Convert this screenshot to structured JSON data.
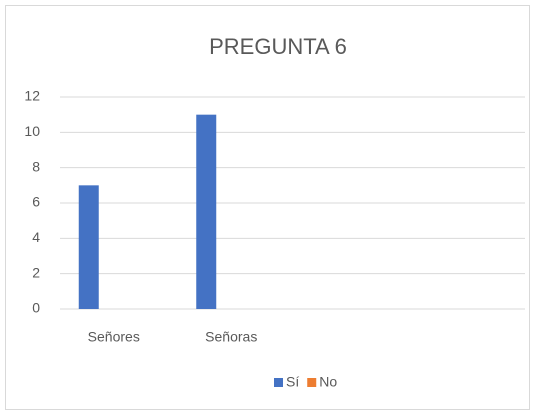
{
  "chart_data": {
    "type": "bar",
    "title": "PREGUNTA 6",
    "categories": [
      "Señores",
      "Señoras",
      null,
      null
    ],
    "series": [
      {
        "name": "Sí",
        "color": "#4472c4",
        "values": [
          7,
          11,
          null,
          null
        ]
      },
      {
        "name": "No",
        "color": "#ed7d31",
        "values": [
          0,
          0,
          null,
          null
        ]
      }
    ],
    "ylim": [
      0,
      12
    ],
    "yticks": [
      0,
      2,
      4,
      6,
      8,
      10,
      12
    ],
    "grid": true,
    "legend": "bottom"
  }
}
